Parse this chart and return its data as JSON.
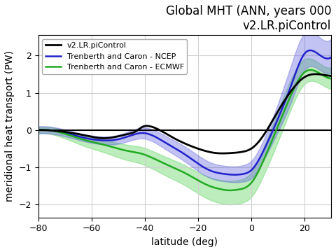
{
  "title_line1": "Global MHT (ANN, years 000",
  "title_line2": "v2.LR.piControl",
  "xlabel": "latitude (deg)",
  "ylabel": "meridional heat transport (PW)",
  "xlim": [
    -80,
    30
  ],
  "ylim": [
    -2.35,
    2.55
  ],
  "yticks": [
    -2,
    -1,
    0,
    1,
    2
  ],
  "xticks": [
    -80,
    -60,
    -40,
    -20,
    0,
    20
  ],
  "legend_labels": [
    "v2.LR.piControl",
    "Trenberth and Caron - NCEP",
    "Trenberth and Caron - ECMWF"
  ],
  "line_colors": [
    "#000000",
    "#2222cc",
    "#22aa22"
  ],
  "fill_alpha_blue": 0.35,
  "fill_alpha_green": 0.35,
  "background_color": "#f8f8f8",
  "grid_color": "#d0d0d0",
  "title_fontsize": 12,
  "label_fontsize": 10,
  "legend_fontsize": 8
}
